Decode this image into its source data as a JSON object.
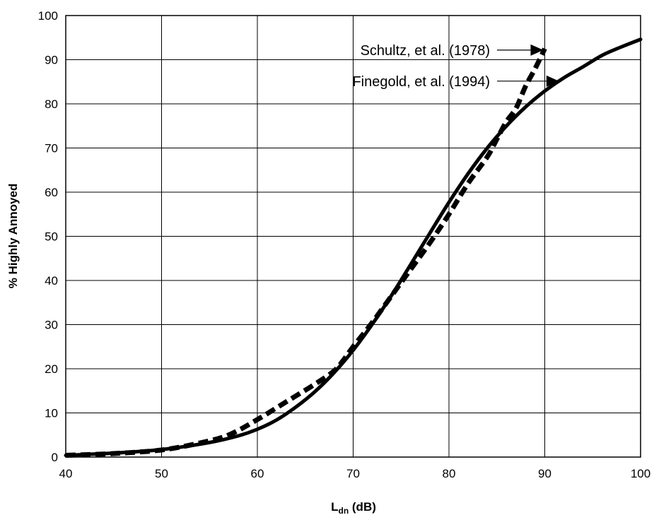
{
  "chart_data": {
    "type": "line",
    "title": "",
    "xlabel_main": "L",
    "xlabel_sub": "dn",
    "xlabel_unit": " (dB)",
    "ylabel": "% Highly Annoyed",
    "xlim": [
      40,
      100
    ],
    "ylim": [
      0,
      100
    ],
    "xticks": [
      "40",
      "50",
      "60",
      "70",
      "80",
      "90",
      "100"
    ],
    "yticks": [
      "0",
      "10",
      "20",
      "30",
      "40",
      "50",
      "60",
      "70",
      "80",
      "90",
      "100"
    ],
    "grid": true,
    "series": [
      {
        "name": "Schultz, et al. (1978)",
        "style": "dashed",
        "x": [
          40,
          45,
          50,
          54,
          57,
          60,
          63,
          66,
          68,
          69,
          70,
          72,
          74,
          76,
          78,
          80,
          82,
          84,
          85,
          86,
          87,
          88,
          89,
          90
        ],
        "y": [
          0.4,
          0.8,
          1.6,
          3.2,
          5.0,
          8.5,
          12.5,
          16.5,
          19.5,
          22,
          25,
          30.5,
          36.5,
          42.5,
          48.5,
          55,
          62,
          68,
          72,
          76,
          79,
          84,
          88,
          92.5
        ]
      },
      {
        "name": "Finegold, et al. (1994)",
        "style": "solid",
        "x": [
          40,
          45,
          50,
          55,
          58,
          60,
          62,
          64,
          66,
          68,
          70,
          72,
          74,
          76,
          78,
          80,
          82,
          84,
          86,
          88,
          90,
          92,
          94,
          96,
          98,
          100
        ],
        "y": [
          0.4,
          0.9,
          1.7,
          3.3,
          4.8,
          6.3,
          8.4,
          11.3,
          14.8,
          19.1,
          24.2,
          30.1,
          36.6,
          43.6,
          50.7,
          57.7,
          64.2,
          70.0,
          75.0,
          79.3,
          82.9,
          85.9,
          88.4,
          91.0,
          92.9,
          94.6
        ]
      }
    ],
    "annotations": [
      {
        "text": "Schultz, et al. (1978)",
        "series": 0
      },
      {
        "text": "Finegold, et al. (1994)",
        "series": 1
      }
    ]
  }
}
